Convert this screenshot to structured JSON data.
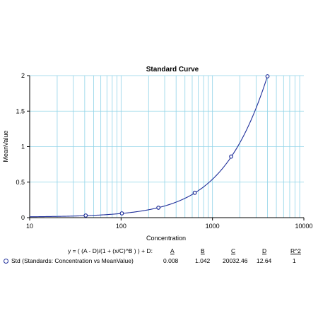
{
  "chart_data": {
    "type": "scatter",
    "title": "Standard Curve",
    "xlabel": "Concentration",
    "ylabel": "MeanValue",
    "xscale": "log",
    "xlim": [
      10,
      10000
    ],
    "ylim": [
      0,
      2
    ],
    "grid": true,
    "x_tick_labels": [
      "10",
      "100",
      "1000",
      "10000"
    ],
    "y_tick_labels": [
      "0",
      "0.5",
      "1",
      "1.5",
      "2"
    ],
    "x_ticks": [
      10,
      100,
      1000,
      10000
    ],
    "y_ticks": [
      0,
      0.5,
      1,
      1.5,
      2
    ],
    "series": [
      {
        "name": "Std (Standards: Concentration vs MeanValue)",
        "points": [
          {
            "x": 41,
            "y": 0.03
          },
          {
            "x": 102,
            "y": 0.06
          },
          {
            "x": 256,
            "y": 0.14
          },
          {
            "x": 640,
            "y": 0.35
          },
          {
            "x": 1600,
            "y": 0.86
          },
          {
            "x": 4000,
            "y": 1.99
          }
        ]
      }
    ],
    "fit": {
      "equation": "y = ( (A - D)/(1 + (x/C)^B ) ) + D:",
      "param_headers": [
        "A",
        "B",
        "C",
        "D",
        "R^2"
      ],
      "params": [
        "0.008",
        "1.042",
        "20032.46",
        "12.64",
        "1"
      ],
      "A": 0.008,
      "B": 1.042,
      "C": 20032.46,
      "D": 12.64
    },
    "colors": {
      "grid": "#8fd3e8",
      "curve": "#1f2f9a",
      "marker": "#1f2f9a",
      "axis": "#000000"
    }
  }
}
